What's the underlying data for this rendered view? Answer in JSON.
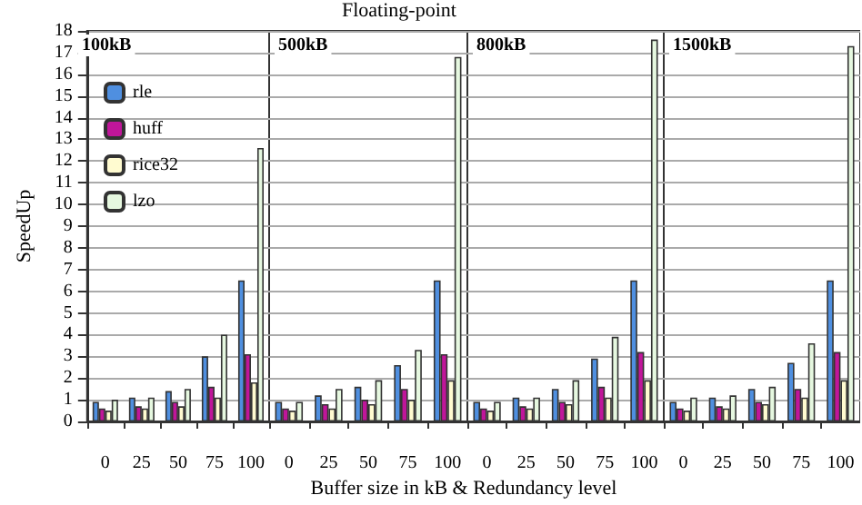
{
  "chart_data": [
    {
      "type": "bar",
      "subtitle": "100kB",
      "xlabel": "Buffer size in kB & Redundancy level",
      "ylabel": "SpeedUp",
      "categories": [
        "0",
        "25",
        "50",
        "75",
        "100"
      ],
      "ylim": [
        0,
        18
      ],
      "yticks": [
        0,
        1,
        2,
        3,
        4,
        5,
        6,
        7,
        8,
        9,
        10,
        11,
        12,
        13,
        14,
        15,
        16,
        17,
        18
      ],
      "grid": "y",
      "legend": "top left",
      "series": [
        {
          "name": "rle",
          "color": "#4f8fe0",
          "values": [
            0.9,
            1.1,
            1.4,
            3.0,
            6.5
          ]
        },
        {
          "name": "huff",
          "color": "#c0169a",
          "values": [
            0.6,
            0.7,
            0.9,
            1.6,
            3.1
          ]
        },
        {
          "name": "rice32",
          "color": "#fffbd0",
          "values": [
            0.5,
            0.6,
            0.7,
            1.1,
            1.8
          ]
        },
        {
          "name": "lzo",
          "color": "#e6f8e0",
          "values": [
            1.0,
            1.1,
            1.5,
            4.0,
            12.6
          ]
        }
      ]
    },
    {
      "type": "bar",
      "title": "Floating-point",
      "subtitle": "500kB",
      "categories": [
        "0",
        "25",
        "50",
        "75",
        "100"
      ],
      "ylim": [
        0,
        18
      ],
      "yticks": [
        0,
        1,
        2,
        3,
        4,
        5,
        6,
        7,
        8,
        9,
        10,
        11,
        12,
        13,
        14,
        15,
        16,
        17,
        18
      ],
      "grid": "y",
      "tick_labels": "x",
      "series": [
        {
          "color": "#4f8fe0",
          "values": [
            0.9,
            1.2,
            1.6,
            2.6,
            6.5
          ]
        },
        {
          "color": "#c0169a",
          "values": [
            0.6,
            0.8,
            1.0,
            1.5,
            3.1
          ]
        },
        {
          "color": "#fffbd0",
          "values": [
            0.5,
            0.6,
            0.8,
            1.0,
            1.9
          ]
        },
        {
          "color": "#e6f8e0",
          "values": [
            0.9,
            1.5,
            1.9,
            3.3,
            16.8
          ]
        }
      ]
    },
    {
      "type": "bar",
      "subtitle": "800kB",
      "categories": [
        "0",
        "25",
        "50",
        "75",
        "100"
      ],
      "ylim": [
        0,
        18
      ],
      "yticks": [
        0,
        1,
        2,
        3,
        4,
        5,
        6,
        7,
        8,
        9,
        10,
        11,
        12,
        13,
        14,
        15,
        16,
        17,
        18
      ],
      "grid": "y",
      "tick_labels": "x",
      "series": [
        {
          "color": "#4f8fe0",
          "values": [
            0.9,
            1.1,
            1.5,
            2.9,
            6.5
          ]
        },
        {
          "color": "#c0169a",
          "values": [
            0.6,
            0.7,
            0.9,
            1.6,
            3.2
          ]
        },
        {
          "color": "#fffbd0",
          "values": [
            0.5,
            0.6,
            0.8,
            1.1,
            1.9
          ]
        },
        {
          "color": "#e6f8e0",
          "values": [
            0.9,
            1.1,
            1.9,
            3.9,
            17.6
          ]
        }
      ]
    },
    {
      "type": "bar",
      "subtitle": "1500kB",
      "categories": [
        "0",
        "25",
        "50",
        "75",
        "100"
      ],
      "ylim": [
        0,
        18
      ],
      "yticks": [
        0,
        1,
        2,
        3,
        4,
        5,
        6,
        7,
        8,
        9,
        10,
        11,
        12,
        13,
        14,
        15,
        16,
        17,
        18
      ],
      "grid": "y",
      "tick_labels": "x",
      "series": [
        {
          "color": "#4f8fe0",
          "values": [
            0.9,
            1.1,
            1.5,
            2.7,
            6.5
          ]
        },
        {
          "color": "#c0169a",
          "values": [
            0.6,
            0.7,
            0.9,
            1.5,
            3.2
          ]
        },
        {
          "color": "#fffbd0",
          "values": [
            0.5,
            0.6,
            0.8,
            1.1,
            1.9
          ]
        },
        {
          "color": "#e6f8e0",
          "values": [
            1.1,
            1.2,
            1.6,
            3.6,
            17.3
          ]
        }
      ]
    }
  ]
}
